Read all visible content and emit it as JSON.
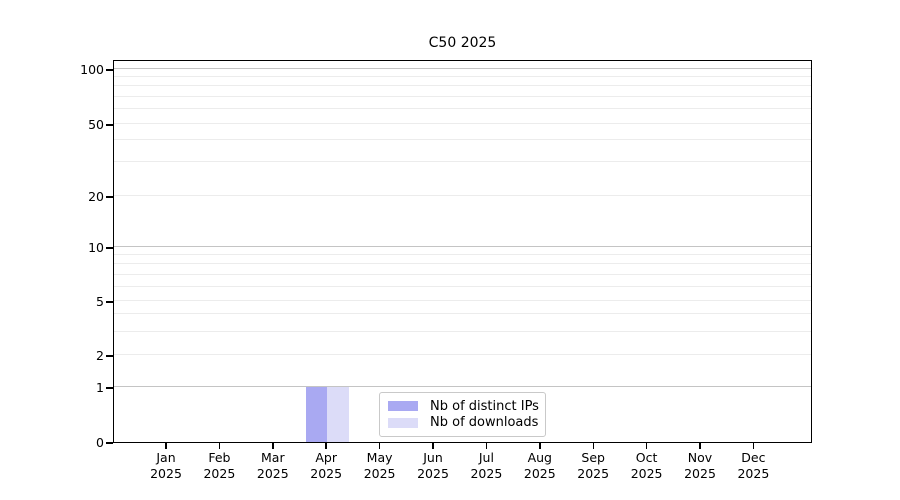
{
  "figure": {
    "title": "C50 2025",
    "background_color": "#ffffff"
  },
  "legend": {
    "items": [
      {
        "label": "Nb of distinct IPs",
        "color": "#a9a9f2"
      },
      {
        "label": "Nb of downloads",
        "color": "#dcdcf8"
      }
    ]
  },
  "chart_data": {
    "type": "bar",
    "title": "C50 2025",
    "xlabel": "",
    "ylabel": "",
    "x_months": [
      "Jan",
      "Feb",
      "Mar",
      "Apr",
      "May",
      "Jun",
      "Jul",
      "Aug",
      "Sep",
      "Oct",
      "Nov",
      "Dec"
    ],
    "x_year": "2025",
    "series": [
      {
        "name": "Nb of distinct IPs",
        "color": "#a9a9f2",
        "values": [
          0,
          0,
          0,
          1,
          0,
          0,
          0,
          0,
          0,
          0,
          0,
          0
        ]
      },
      {
        "name": "Nb of downloads",
        "color": "#dcdcf8",
        "values": [
          0,
          0,
          0,
          1,
          0,
          0,
          0,
          0,
          0,
          0,
          0,
          0
        ]
      }
    ],
    "yscale": "symlog",
    "ylim": [
      0,
      110
    ],
    "grid": true,
    "legend_position": "inside-bottom-center",
    "y_labeled_ticks": [
      100,
      50,
      20,
      10,
      5,
      2,
      1,
      0
    ],
    "y_gridlines": [
      {
        "value": 1,
        "frac": 0.1436,
        "major": true
      },
      {
        "value": 2,
        "frac": 0.2272,
        "major": false
      },
      {
        "value": 3,
        "frac": 0.2872,
        "major": false
      },
      {
        "value": 4,
        "frac": 0.3342,
        "major": false
      },
      {
        "value": 5,
        "frac": 0.3681,
        "major": false
      },
      {
        "value": 6,
        "frac": 0.406,
        "major": false
      },
      {
        "value": 7,
        "frac": 0.436,
        "major": false
      },
      {
        "value": 8,
        "frac": 0.4647,
        "major": false
      },
      {
        "value": 9,
        "frac": 0.4883,
        "major": false
      },
      {
        "value": 10,
        "frac": 0.5091,
        "major": true
      },
      {
        "value": 20,
        "frac": 0.6423,
        "major": false
      },
      {
        "value": 30,
        "frac": 0.7311,
        "major": false
      },
      {
        "value": 40,
        "frac": 0.7885,
        "major": false
      },
      {
        "value": 50,
        "frac": 0.8303,
        "major": false
      },
      {
        "value": 60,
        "frac": 0.8708,
        "major": false
      },
      {
        "value": 70,
        "frac": 0.9008,
        "major": false
      },
      {
        "value": 80,
        "frac": 0.9295,
        "major": false
      },
      {
        "value": 90,
        "frac": 0.953,
        "major": false
      },
      {
        "value": 100,
        "frac": 0.9739,
        "major": true
      }
    ]
  }
}
